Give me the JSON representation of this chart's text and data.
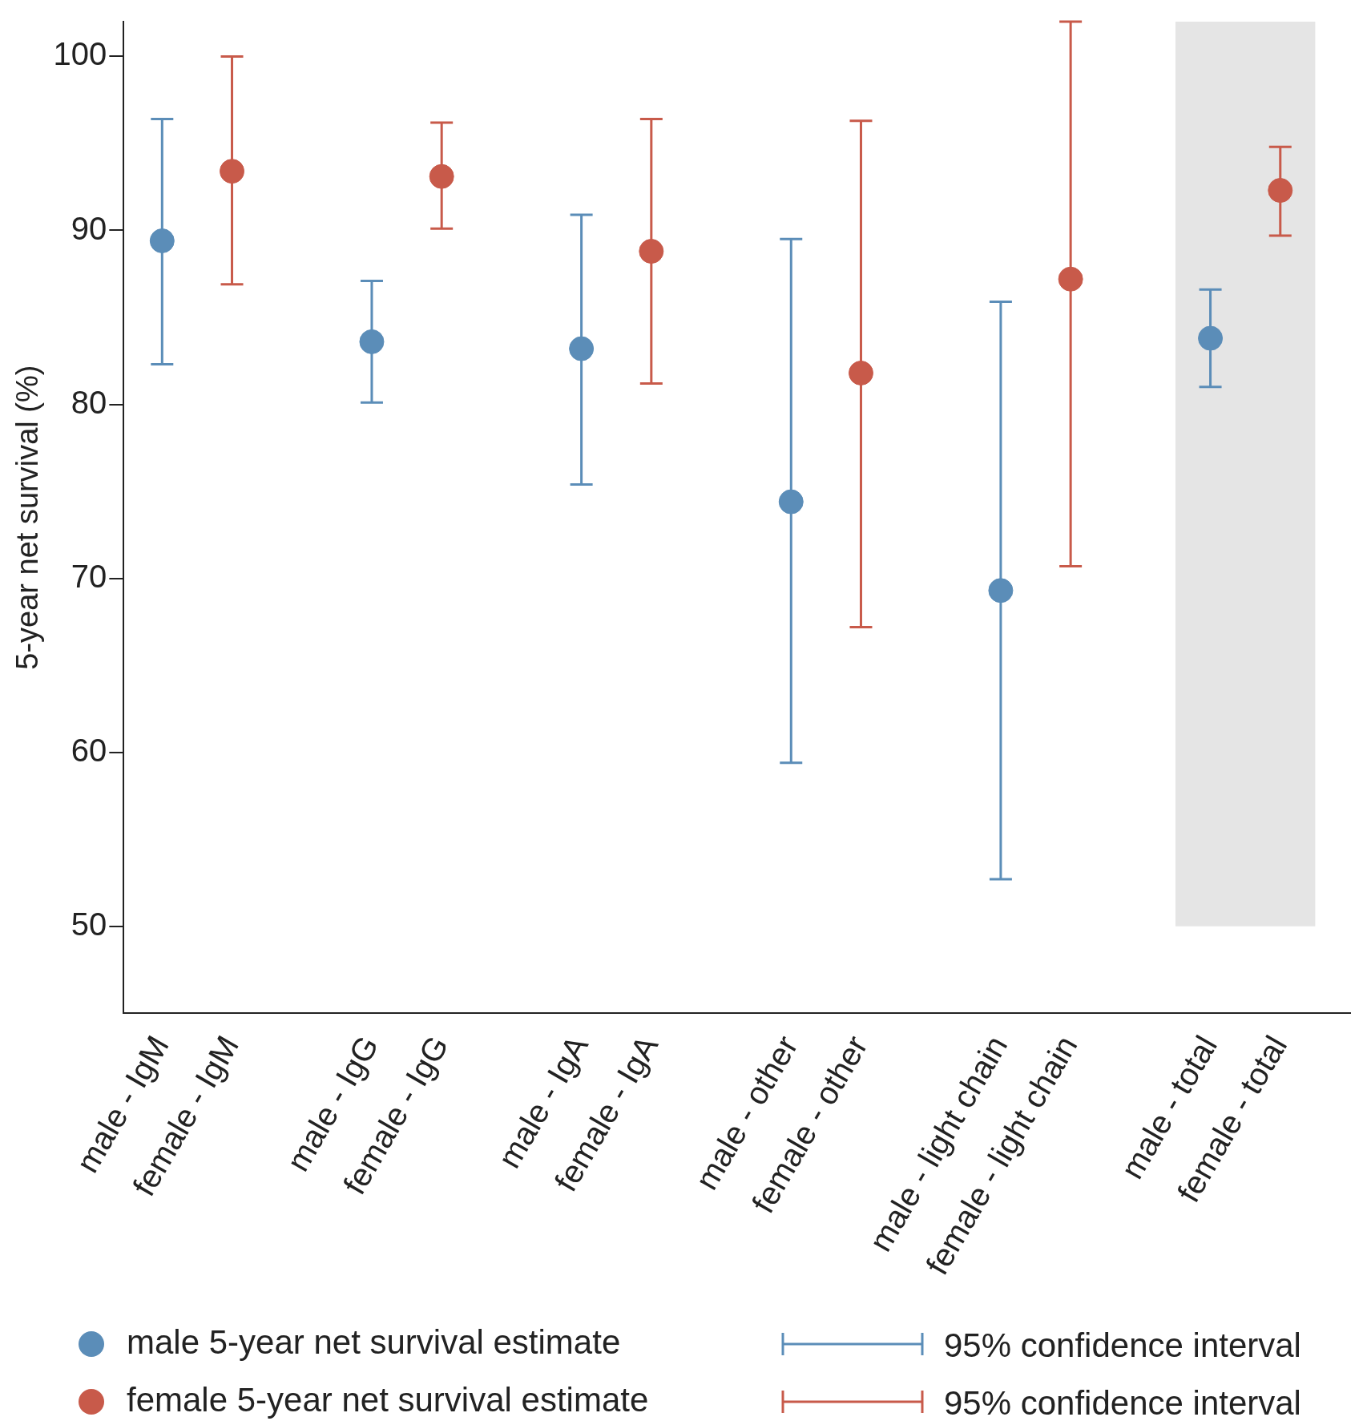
{
  "chart_data": {
    "type": "scatter",
    "ylabel": "5-year net survival (%)",
    "categories": [
      "male - IgM",
      "female - IgM",
      "male - IgG",
      "female - IgG",
      "male - IgA",
      "female - IgA",
      "male - other",
      "female - other",
      "male - light chain",
      "female - light chain",
      "male - total",
      "female - total"
    ],
    "series": [
      {
        "name": "male 5-year net survival estimate",
        "color": "#5b8db8",
        "values": [
          89.4,
          null,
          83.6,
          null,
          83.2,
          null,
          74.4,
          null,
          69.3,
          null,
          83.8,
          null
        ],
        "errors": [
          [
            82.3,
            96.4
          ],
          null,
          [
            80.1,
            87.1
          ],
          null,
          [
            75.4,
            90.9
          ],
          null,
          [
            59.4,
            89.5
          ],
          null,
          [
            52.7,
            85.9
          ],
          null,
          [
            81.0,
            86.6
          ],
          null
        ]
      },
      {
        "name": "female 5-year net survival estimate",
        "color": "#c85a4a",
        "values": [
          null,
          93.4,
          null,
          93.1,
          null,
          88.8,
          null,
          81.8,
          null,
          87.2,
          null,
          92.3
        ],
        "errors": [
          null,
          [
            86.9,
            100
          ],
          null,
          [
            90.1,
            96.2
          ],
          null,
          [
            81.2,
            96.4
          ],
          null,
          [
            67.2,
            96.3
          ],
          null,
          [
            70.7,
            102
          ],
          null,
          [
            89.7,
            94.8
          ]
        ]
      }
    ],
    "ylim": [
      45,
      102
    ],
    "yticks": [
      50,
      60,
      70,
      80,
      90,
      100
    ],
    "bands": [
      {
        "axis": "x",
        "from": "male - total",
        "to": "female - total",
        "color": "#e5e5e5"
      }
    ],
    "annotations": [
      "95% confidence interval",
      "95% confidence interval"
    ],
    "marker": "circle",
    "grid": false,
    "legend": "bottom"
  }
}
